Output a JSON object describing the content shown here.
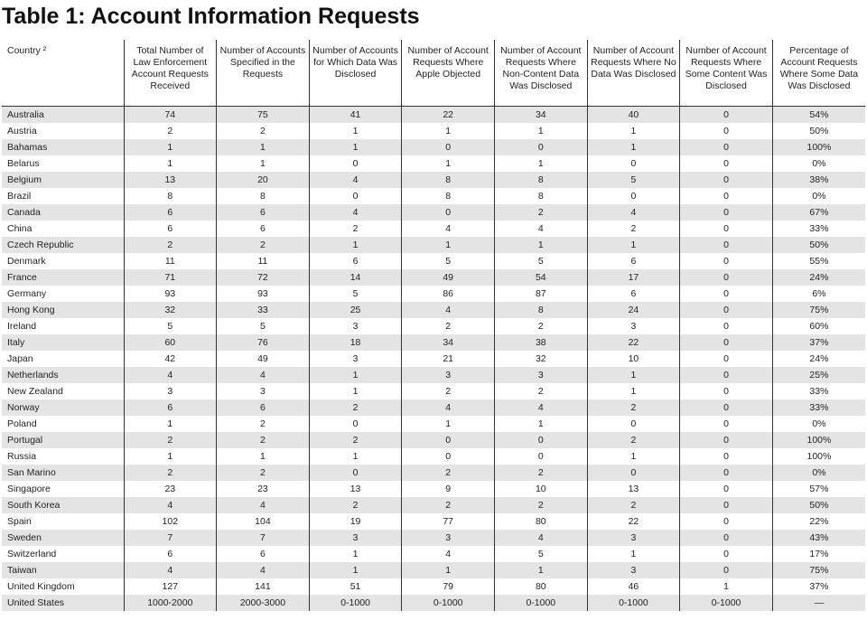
{
  "header": {
    "title": "Table 1: Account Information Requests"
  },
  "table": {
    "headers": [
      "Country ²",
      "Total Number of Law Enforcement Account Requests Received",
      "Number of Accounts Specified in the Requests",
      "Number of Accounts for Which Data Was Disclosed",
      "Number of Account Requests Where Apple Objected",
      "Number of Account Requests Where Non-Content Data Was Disclosed",
      "Number of Account Requests Where No Data Was Disclosed",
      "Number of Account Requests Where Some Content Was Disclosed",
      "Percentage of Account Requests Where Some Data Was Disclosed"
    ],
    "rows": [
      [
        "Australia",
        "74",
        "75",
        "41",
        "22",
        "34",
        "40",
        "0",
        "54%"
      ],
      [
        "Austria",
        "2",
        "2",
        "1",
        "1",
        "1",
        "1",
        "0",
        "50%"
      ],
      [
        "Bahamas",
        "1",
        "1",
        "1",
        "0",
        "0",
        "1",
        "0",
        "100%"
      ],
      [
        "Belarus",
        "1",
        "1",
        "0",
        "1",
        "1",
        "0",
        "0",
        "0%"
      ],
      [
        "Belgium",
        "13",
        "20",
        "4",
        "8",
        "8",
        "5",
        "0",
        "38%"
      ],
      [
        "Brazil",
        "8",
        "8",
        "0",
        "8",
        "8",
        "0",
        "0",
        "0%"
      ],
      [
        "Canada",
        "6",
        "6",
        "4",
        "0",
        "2",
        "4",
        "0",
        "67%"
      ],
      [
        "China",
        "6",
        "6",
        "2",
        "4",
        "4",
        "2",
        "0",
        "33%"
      ],
      [
        "Czech Republic",
        "2",
        "2",
        "1",
        "1",
        "1",
        "1",
        "0",
        "50%"
      ],
      [
        "Denmark",
        "11",
        "11",
        "6",
        "5",
        "5",
        "6",
        "0",
        "55%"
      ],
      [
        "France",
        "71",
        "72",
        "14",
        "49",
        "54",
        "17",
        "0",
        "24%"
      ],
      [
        "Germany",
        "93",
        "93",
        "5",
        "86",
        "87",
        "6",
        "0",
        "6%"
      ],
      [
        "Hong Kong",
        "32",
        "33",
        "25",
        "4",
        "8",
        "24",
        "0",
        "75%"
      ],
      [
        "Ireland",
        "5",
        "5",
        "3",
        "2",
        "2",
        "3",
        "0",
        "60%"
      ],
      [
        "Italy",
        "60",
        "76",
        "18",
        "34",
        "38",
        "22",
        "0",
        "37%"
      ],
      [
        "Japan",
        "42",
        "49",
        "3",
        "21",
        "32",
        "10",
        "0",
        "24%"
      ],
      [
        "Netherlands",
        "4",
        "4",
        "1",
        "3",
        "3",
        "1",
        "0",
        "25%"
      ],
      [
        "New Zealand",
        "3",
        "3",
        "1",
        "2",
        "2",
        "1",
        "0",
        "33%"
      ],
      [
        "Norway",
        "6",
        "6",
        "2",
        "4",
        "4",
        "2",
        "0",
        "33%"
      ],
      [
        "Poland",
        "1",
        "2",
        "0",
        "1",
        "1",
        "0",
        "0",
        "0%"
      ],
      [
        "Portugal",
        "2",
        "2",
        "2",
        "0",
        "0",
        "2",
        "0",
        "100%"
      ],
      [
        "Russia",
        "1",
        "1",
        "1",
        "0",
        "0",
        "1",
        "0",
        "100%"
      ],
      [
        "San Marino",
        "2",
        "2",
        "0",
        "2",
        "2",
        "0",
        "0",
        "0%"
      ],
      [
        "Singapore",
        "23",
        "23",
        "13",
        "9",
        "10",
        "13",
        "0",
        "57%"
      ],
      [
        "South Korea",
        "4",
        "4",
        "2",
        "2",
        "2",
        "2",
        "0",
        "50%"
      ],
      [
        "Spain",
        "102",
        "104",
        "19",
        "77",
        "80",
        "22",
        "0",
        "22%"
      ],
      [
        "Sweden",
        "7",
        "7",
        "3",
        "3",
        "4",
        "3",
        "0",
        "43%"
      ],
      [
        "Switzerland",
        "6",
        "6",
        "1",
        "4",
        "5",
        "1",
        "0",
        "17%"
      ],
      [
        "Taiwan",
        "4",
        "4",
        "1",
        "1",
        "1",
        "3",
        "0",
        "75%"
      ],
      [
        "United Kingdom",
        "127",
        "141",
        "51",
        "79",
        "80",
        "46",
        "1",
        "37%"
      ],
      [
        "United States",
        "1000-2000",
        "2000-3000",
        "0-1000",
        "0-1000",
        "0-1000",
        "0-1000",
        "0-1000",
        "—"
      ]
    ]
  }
}
